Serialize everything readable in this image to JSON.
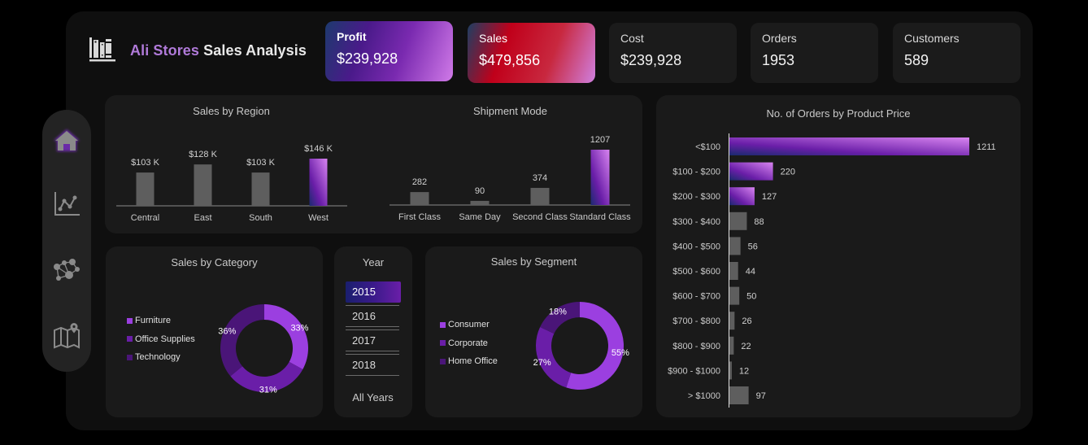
{
  "header": {
    "brand": "Ali Stores",
    "title": "Sales Analysis",
    "logo_icon": "books-icon"
  },
  "kpis": [
    {
      "label": "Profit",
      "value": "$239,928"
    },
    {
      "label": "Sales",
      "value": "$479,856"
    },
    {
      "label": "Cost",
      "value": "$239,928"
    },
    {
      "label": "Orders",
      "value": "1953"
    },
    {
      "label": "Customers",
      "value": "589"
    }
  ],
  "sidebar": {
    "items": [
      {
        "icon": "home-icon",
        "active": true
      },
      {
        "icon": "line-chart-icon",
        "active": false
      },
      {
        "icon": "network-icon",
        "active": false
      },
      {
        "icon": "map-icon",
        "active": false
      }
    ]
  },
  "colors": {
    "accent": "#9b3fe0",
    "accent_mid": "#6a1ea8",
    "accent_dark": "#4a1578",
    "bar_gray": "#5e5e5e",
    "panel_bg": "#1a1a1a"
  },
  "year_slicer": {
    "title": "Year",
    "options": [
      "2015",
      "2016",
      "2017",
      "2018"
    ],
    "selected": "2015",
    "all_label": "All Years"
  },
  "chart_data": [
    {
      "type": "bar",
      "title": "Sales by Region",
      "categories": [
        "Central",
        "East",
        "South",
        "West"
      ],
      "values": [
        103,
        128,
        103,
        146
      ],
      "labels": [
        "$103 K",
        "$128 K",
        "$103 K",
        "$146 K"
      ],
      "unit": "$K",
      "highlight": "West",
      "xlabel": "",
      "ylabel": ""
    },
    {
      "type": "bar",
      "title": "Shipment Mode",
      "categories": [
        "First Class",
        "Same Day",
        "Second Class",
        "Standard Class"
      ],
      "values": [
        282,
        90,
        374,
        1207
      ],
      "labels": [
        "282",
        "90",
        "374",
        "1207"
      ],
      "highlight": "Standard Class",
      "xlabel": "",
      "ylabel": ""
    },
    {
      "type": "pie",
      "title": "Sales by Category",
      "categories": [
        "Furniture",
        "Office Supplies",
        "Technology"
      ],
      "values": [
        33,
        31,
        36
      ],
      "labels": [
        "33%",
        "31%",
        "36%"
      ],
      "colors": [
        "#9b3fe0",
        "#6a1ea8",
        "#4a1578"
      ],
      "legend": "left"
    },
    {
      "type": "pie",
      "title": "Sales by Segment",
      "categories": [
        "Consumer",
        "Corporate",
        "Home Office"
      ],
      "values": [
        55,
        27,
        18
      ],
      "labels": [
        "55%",
        "27%",
        "18%"
      ],
      "colors": [
        "#9b3fe0",
        "#6a1ea8",
        "#4a1578"
      ],
      "legend": "left"
    },
    {
      "type": "bar",
      "orientation": "horizontal",
      "title": "No. of Orders by Product Price",
      "categories": [
        "<$100",
        "$100 - $200",
        "$200 - $300",
        "$300 - $400",
        "$400 - $500",
        "$500 - $600",
        "$600 - $700",
        "$700 - $800",
        "$800 - $900",
        "$900 - $1000",
        "> $1000"
      ],
      "values": [
        1211,
        220,
        127,
        88,
        56,
        44,
        50,
        26,
        22,
        12,
        97
      ],
      "highlight": [
        "<$100",
        "$100 - $200",
        "$200 - $300"
      ],
      "xlabel": "",
      "ylabel": ""
    }
  ]
}
